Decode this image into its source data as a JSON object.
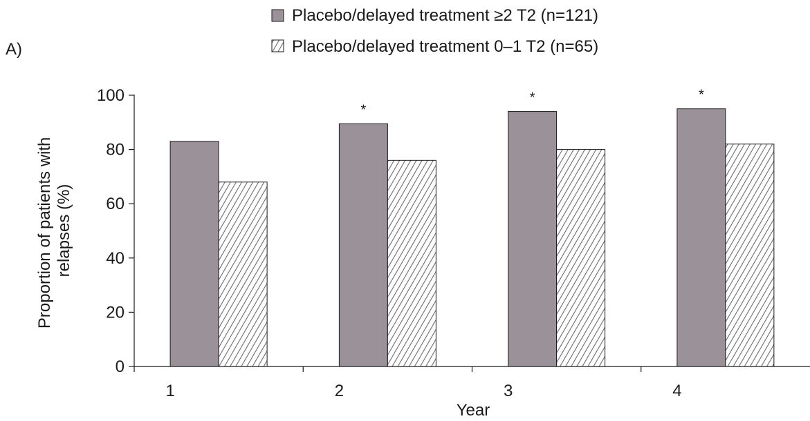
{
  "chart_data": {
    "type": "bar",
    "panel_label": "A)",
    "title": "",
    "xlabel": "Year",
    "ylabel_lines": [
      "Proportion of patients with",
      "relapses (%)"
    ],
    "ylim": [
      0,
      100
    ],
    "yticks": [
      0,
      20,
      40,
      60,
      80,
      100
    ],
    "categories": [
      "1",
      "2",
      "3",
      "4"
    ],
    "series": [
      {
        "name": "Placebo/delayed treatment ≥2 T2 (n=121)",
        "values": [
          83,
          89.5,
          94,
          95
        ],
        "fill": "#9a9298",
        "pattern": "solid"
      },
      {
        "name": "Placebo/delayed treatment 0–1 T2 (n=65)",
        "values": [
          68,
          76,
          80,
          82
        ],
        "fill": "#ffffff",
        "pattern": "hatch"
      }
    ],
    "annotations": [
      "",
      "*",
      "*",
      "*"
    ],
    "legend_position": "top",
    "grid": false,
    "colors": {
      "solid_bar": "#9a9298",
      "hatch_line": "#6d6a6c",
      "axis": "#1a1a1a"
    }
  }
}
